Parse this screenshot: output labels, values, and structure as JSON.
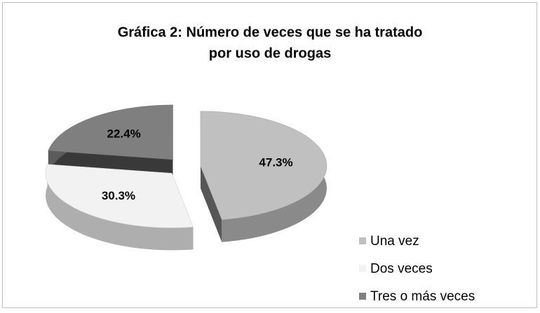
{
  "chart_data": {
    "type": "pie",
    "title": [
      "Gráfica 2: Número de veces que se ha tratado",
      "por  uso de drogas"
    ],
    "categories": [
      "Una vez",
      "Dos veces",
      "Tres o más veces"
    ],
    "values": [
      47.3,
      30.3,
      22.4
    ],
    "value_labels": [
      "47.3%",
      "30.3%",
      "22.4%"
    ],
    "colors": [
      "#c0c0c0",
      "#f2f2f2",
      "#7f7f7f"
    ],
    "legend": "bottom-right"
  }
}
